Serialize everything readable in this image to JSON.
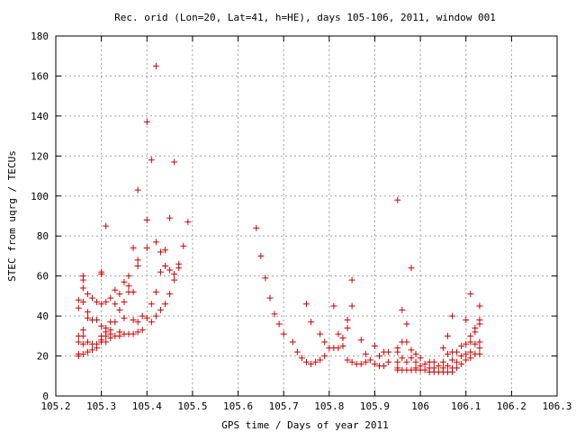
{
  "chart_data": {
    "type": "scatter",
    "title": "Rec. orid (Lon=20, Lat=41, h=HE), days 105-106, 2011, window 001",
    "xlabel": "GPS time / Days of year 2011",
    "ylabel": "STEC from uqrg / TECUs",
    "xlim": [
      105.2,
      106.3
    ],
    "ylim": [
      0,
      180
    ],
    "xticks": [
      105.2,
      105.3,
      105.4,
      105.5,
      105.6,
      105.7,
      105.8,
      105.9,
      106.0,
      106.1,
      106.2,
      106.3
    ],
    "xtick_labels": [
      "105.2",
      "105.3",
      "105.4",
      "105.5",
      "105.6",
      "105.7",
      "105.8",
      "105.9",
      "106",
      "106.1",
      "106.2",
      "106.3"
    ],
    "yticks": [
      0,
      20,
      40,
      60,
      80,
      100,
      120,
      140,
      160,
      180
    ],
    "ytick_labels": [
      "0",
      "20",
      "40",
      "60",
      "80",
      "100",
      "120",
      "140",
      "160",
      "180"
    ],
    "grid": true,
    "marker": "+",
    "marker_color": "#cc0000",
    "series": [
      {
        "points": [
          [
            105.25,
            48
          ],
          [
            105.25,
            44
          ],
          [
            105.25,
            30
          ],
          [
            105.25,
            27
          ],
          [
            105.25,
            21
          ],
          [
            105.25,
            20
          ],
          [
            105.26,
            60
          ],
          [
            105.26,
            58
          ],
          [
            105.26,
            54
          ],
          [
            105.26,
            47
          ],
          [
            105.26,
            33
          ],
          [
            105.26,
            30
          ],
          [
            105.26,
            26
          ],
          [
            105.26,
            21
          ],
          [
            105.27,
            51
          ],
          [
            105.27,
            42
          ],
          [
            105.27,
            39
          ],
          [
            105.27,
            27
          ],
          [
            105.27,
            22
          ],
          [
            105.28,
            49
          ],
          [
            105.28,
            38
          ],
          [
            105.28,
            26
          ],
          [
            105.28,
            23
          ],
          [
            105.29,
            47
          ],
          [
            105.29,
            38
          ],
          [
            105.29,
            26
          ],
          [
            105.29,
            24
          ],
          [
            105.3,
            62
          ],
          [
            105.3,
            61
          ],
          [
            105.3,
            46
          ],
          [
            105.3,
            35
          ],
          [
            105.3,
            30
          ],
          [
            105.3,
            28
          ],
          [
            105.3,
            27
          ],
          [
            105.31,
            85
          ],
          [
            105.31,
            47
          ],
          [
            105.31,
            34
          ],
          [
            105.31,
            32
          ],
          [
            105.31,
            30
          ],
          [
            105.31,
            27
          ],
          [
            105.32,
            49
          ],
          [
            105.32,
            37
          ],
          [
            105.32,
            33
          ],
          [
            105.32,
            31
          ],
          [
            105.32,
            29
          ],
          [
            105.33,
            53
          ],
          [
            105.33,
            46
          ],
          [
            105.33,
            37
          ],
          [
            105.33,
            30
          ],
          [
            105.34,
            51
          ],
          [
            105.34,
            43
          ],
          [
            105.34,
            32
          ],
          [
            105.34,
            30
          ],
          [
            105.35,
            57
          ],
          [
            105.35,
            47
          ],
          [
            105.35,
            39
          ],
          [
            105.35,
            31
          ],
          [
            105.36,
            60
          ],
          [
            105.36,
            55
          ],
          [
            105.36,
            52
          ],
          [
            105.36,
            31
          ],
          [
            105.37,
            74
          ],
          [
            105.37,
            52
          ],
          [
            105.37,
            38
          ],
          [
            105.37,
            31
          ],
          [
            105.38,
            103
          ],
          [
            105.38,
            68
          ],
          [
            105.38,
            65
          ],
          [
            105.38,
            37
          ],
          [
            105.38,
            32
          ],
          [
            105.39,
            40
          ],
          [
            105.39,
            33
          ],
          [
            105.4,
            137
          ],
          [
            105.4,
            88
          ],
          [
            105.4,
            74
          ],
          [
            105.4,
            39
          ],
          [
            105.41,
            118
          ],
          [
            105.41,
            46
          ],
          [
            105.41,
            37
          ],
          [
            105.42,
            165
          ],
          [
            105.42,
            77
          ],
          [
            105.42,
            52
          ],
          [
            105.42,
            40
          ],
          [
            105.43,
            72
          ],
          [
            105.43,
            62
          ],
          [
            105.43,
            43
          ],
          [
            105.44,
            73
          ],
          [
            105.44,
            65
          ],
          [
            105.44,
            46
          ],
          [
            105.45,
            89
          ],
          [
            105.45,
            63
          ],
          [
            105.45,
            51
          ],
          [
            105.46,
            117
          ],
          [
            105.46,
            61
          ],
          [
            105.46,
            58
          ],
          [
            105.47,
            66
          ],
          [
            105.47,
            64
          ],
          [
            105.48,
            75
          ],
          [
            105.49,
            87
          ],
          [
            105.64,
            84
          ],
          [
            105.65,
            70
          ],
          [
            105.66,
            59
          ],
          [
            105.67,
            49
          ],
          [
            105.68,
            41
          ],
          [
            105.69,
            36
          ],
          [
            105.7,
            31
          ],
          [
            105.72,
            27
          ],
          [
            105.73,
            22
          ],
          [
            105.74,
            19
          ],
          [
            105.75,
            46
          ],
          [
            105.75,
            17
          ],
          [
            105.76,
            37
          ],
          [
            105.76,
            16
          ],
          [
            105.77,
            17
          ],
          [
            105.78,
            31
          ],
          [
            105.78,
            18
          ],
          [
            105.79,
            27
          ],
          [
            105.79,
            20
          ],
          [
            105.8,
            24
          ],
          [
            105.81,
            45
          ],
          [
            105.81,
            24
          ],
          [
            105.82,
            31
          ],
          [
            105.82,
            24
          ],
          [
            105.83,
            25
          ],
          [
            105.83,
            29
          ],
          [
            105.84,
            38
          ],
          [
            105.84,
            34
          ],
          [
            105.84,
            18
          ],
          [
            105.85,
            58
          ],
          [
            105.85,
            45
          ],
          [
            105.85,
            17
          ],
          [
            105.86,
            16
          ],
          [
            105.87,
            28
          ],
          [
            105.87,
            16
          ],
          [
            105.88,
            21
          ],
          [
            105.88,
            17
          ],
          [
            105.89,
            18
          ],
          [
            105.9,
            25
          ],
          [
            105.9,
            16
          ],
          [
            105.91,
            20
          ],
          [
            105.91,
            15
          ],
          [
            105.92,
            22
          ],
          [
            105.92,
            15
          ],
          [
            105.93,
            22
          ],
          [
            105.93,
            17
          ],
          [
            105.95,
            98
          ],
          [
            105.95,
            24
          ],
          [
            105.95,
            22
          ],
          [
            105.95,
            17
          ],
          [
            105.95,
            14
          ],
          [
            105.95,
            13
          ],
          [
            105.96,
            43
          ],
          [
            105.96,
            27
          ],
          [
            105.96,
            19
          ],
          [
            105.96,
            13
          ],
          [
            105.97,
            36
          ],
          [
            105.97,
            27
          ],
          [
            105.97,
            17
          ],
          [
            105.97,
            13
          ],
          [
            105.98,
            64
          ],
          [
            105.98,
            23
          ],
          [
            105.98,
            19
          ],
          [
            105.98,
            13
          ],
          [
            105.99,
            21
          ],
          [
            105.99,
            17
          ],
          [
            105.99,
            14
          ],
          [
            105.99,
            13
          ],
          [
            106.0,
            19
          ],
          [
            106.0,
            15
          ],
          [
            106.0,
            13
          ],
          [
            106.01,
            16
          ],
          [
            106.01,
            13
          ],
          [
            106.02,
            17
          ],
          [
            106.02,
            14
          ],
          [
            106.02,
            12
          ],
          [
            106.03,
            17
          ],
          [
            106.03,
            14
          ],
          [
            106.03,
            12
          ],
          [
            106.04,
            15
          ],
          [
            106.04,
            12
          ],
          [
            106.05,
            24
          ],
          [
            106.05,
            17
          ],
          [
            106.05,
            14
          ],
          [
            106.05,
            12
          ],
          [
            106.06,
            30
          ],
          [
            106.06,
            21
          ],
          [
            106.06,
            15
          ],
          [
            106.06,
            12
          ],
          [
            106.07,
            40
          ],
          [
            106.07,
            22
          ],
          [
            106.07,
            18
          ],
          [
            106.07,
            14
          ],
          [
            106.07,
            12
          ],
          [
            106.08,
            22
          ],
          [
            106.08,
            17
          ],
          [
            106.08,
            14
          ],
          [
            106.09,
            25
          ],
          [
            106.09,
            20
          ],
          [
            106.09,
            16
          ],
          [
            106.1,
            38
          ],
          [
            106.1,
            26
          ],
          [
            106.1,
            21
          ],
          [
            106.1,
            18
          ],
          [
            106.11,
            51
          ],
          [
            106.11,
            30
          ],
          [
            106.11,
            27
          ],
          [
            106.11,
            22
          ],
          [
            106.11,
            19
          ],
          [
            106.12,
            34
          ],
          [
            106.12,
            32
          ],
          [
            106.12,
            26
          ],
          [
            106.12,
            21
          ],
          [
            106.13,
            45
          ],
          [
            106.13,
            38
          ],
          [
            106.13,
            36
          ],
          [
            106.13,
            27
          ],
          [
            106.13,
            24
          ],
          [
            106.13,
            21
          ]
        ]
      }
    ]
  }
}
